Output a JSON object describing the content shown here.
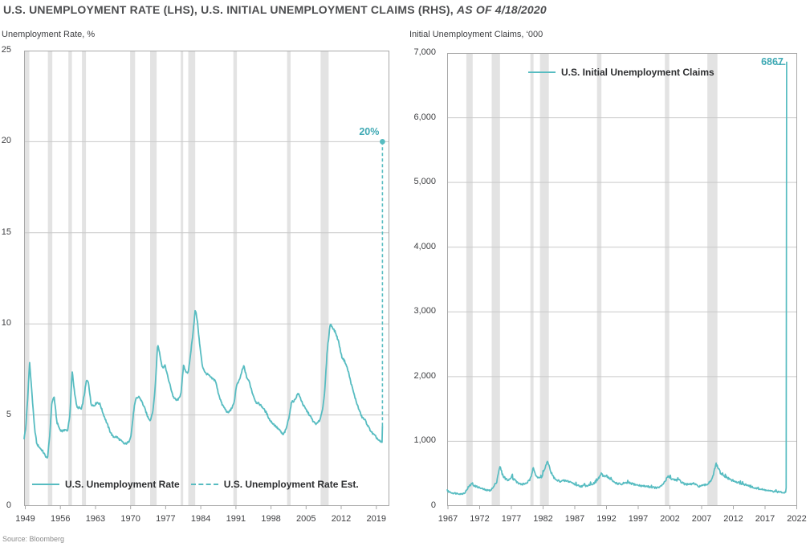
{
  "title": {
    "main": "U.S. UNEMPLOYMENT RATE (LHS), U.S. INITIAL UNEMPLOYMENT CLAIMS (RHS), ",
    "as_of": "AS OF 4/18/2020"
  },
  "source": "Source: Bloomberg",
  "colors": {
    "line": "#57bcc1",
    "annotation": "#3fa9b4",
    "recession_band": "#e3e3e3",
    "gridline": "#c9c9c9",
    "axis_border": "#a8a8a8",
    "title_text": "#4d4e50",
    "tick_text": "#3e3f42",
    "legend_text": "#2d2e30",
    "source_text": "#8a8a8a",
    "background": "#ffffff"
  },
  "chart_data": [
    {
      "type": "line",
      "title": "Unemployment Rate, %",
      "ylabel": "Unemployment Rate, %",
      "ylim": [
        0,
        25
      ],
      "yticks": [
        0,
        5,
        10,
        15,
        20,
        25
      ],
      "ytick_labels": [
        "0",
        "5",
        "10",
        "15",
        "20",
        "25"
      ],
      "xlim": [
        1948.76,
        2021.6
      ],
      "xticks": [
        1949,
        1956,
        1963,
        1970,
        1977,
        1984,
        1991,
        1998,
        2005,
        2012,
        2019
      ],
      "grid": "horizontal",
      "legend_position": "bottom-inside",
      "legend": [
        {
          "label": "U.S. Unemployment Rate",
          "style": "solid"
        },
        {
          "label": "U.S. Unemployment Rate Est.",
          "style": "dashed"
        }
      ],
      "annotation": {
        "text": "20%",
        "x": 2020.22,
        "y": 20
      },
      "recessions": [
        [
          1948.9,
          1949.8
        ],
        [
          1953.5,
          1954.4
        ],
        [
          1957.6,
          1958.3
        ],
        [
          1960.3,
          1961.1
        ],
        [
          1969.9,
          1970.9
        ],
        [
          1973.9,
          1975.2
        ],
        [
          1980.0,
          1980.5
        ],
        [
          1981.5,
          1982.9
        ],
        [
          1990.5,
          1991.2
        ],
        [
          2001.2,
          2001.9
        ],
        [
          2007.9,
          2009.5
        ]
      ],
      "series": [
        {
          "name": "U.S. Unemployment Rate",
          "style": "solid",
          "points": [
            [
              1948.76,
              3.7
            ],
            [
              1949.1,
              4.3
            ],
            [
              1949.5,
              6.0
            ],
            [
              1949.85,
              7.9
            ],
            [
              1950.3,
              6.3
            ],
            [
              1950.8,
              4.4
            ],
            [
              1951.3,
              3.4
            ],
            [
              1951.9,
              3.2
            ],
            [
              1952.5,
              3.0
            ],
            [
              1952.9,
              2.8
            ],
            [
              1953.4,
              2.6
            ],
            [
              1953.8,
              3.6
            ],
            [
              1954.3,
              5.7
            ],
            [
              1954.75,
              6.0
            ],
            [
              1955.3,
              4.6
            ],
            [
              1955.9,
              4.2
            ],
            [
              1956.4,
              4.1
            ],
            [
              1956.9,
              4.2
            ],
            [
              1957.4,
              4.1
            ],
            [
              1957.9,
              5.0
            ],
            [
              1958.35,
              7.4
            ],
            [
              1958.8,
              6.3
            ],
            [
              1959.3,
              5.4
            ],
            [
              1959.8,
              5.4
            ],
            [
              1960.2,
              5.3
            ],
            [
              1960.7,
              6.0
            ],
            [
              1961.2,
              6.9
            ],
            [
              1961.6,
              6.8
            ],
            [
              1962.1,
              5.6
            ],
            [
              1962.7,
              5.5
            ],
            [
              1963.3,
              5.7
            ],
            [
              1963.9,
              5.6
            ],
            [
              1964.5,
              5.1
            ],
            [
              1965.2,
              4.6
            ],
            [
              1965.9,
              4.1
            ],
            [
              1966.5,
              3.8
            ],
            [
              1967.2,
              3.8
            ],
            [
              1968.0,
              3.6
            ],
            [
              1968.8,
              3.4
            ],
            [
              1969.6,
              3.5
            ],
            [
              1970.1,
              3.9
            ],
            [
              1970.7,
              5.4
            ],
            [
              1971.1,
              5.9
            ],
            [
              1971.7,
              6.0
            ],
            [
              1972.3,
              5.7
            ],
            [
              1972.9,
              5.3
            ],
            [
              1973.4,
              4.9
            ],
            [
              1973.95,
              4.7
            ],
            [
              1974.5,
              5.3
            ],
            [
              1974.9,
              6.5
            ],
            [
              1975.4,
              8.9
            ],
            [
              1975.8,
              8.4
            ],
            [
              1976.3,
              7.6
            ],
            [
              1976.9,
              7.7
            ],
            [
              1977.4,
              7.1
            ],
            [
              1977.9,
              6.6
            ],
            [
              1978.5,
              6.0
            ],
            [
              1979.1,
              5.8
            ],
            [
              1979.7,
              5.9
            ],
            [
              1980.1,
              6.3
            ],
            [
              1980.55,
              7.7
            ],
            [
              1981.0,
              7.4
            ],
            [
              1981.5,
              7.3
            ],
            [
              1981.9,
              8.2
            ],
            [
              1982.4,
              9.4
            ],
            [
              1982.9,
              10.8
            ],
            [
              1983.3,
              10.2
            ],
            [
              1983.8,
              8.8
            ],
            [
              1984.3,
              7.7
            ],
            [
              1984.9,
              7.3
            ],
            [
              1985.5,
              7.2
            ],
            [
              1986.2,
              7.0
            ],
            [
              1986.9,
              6.9
            ],
            [
              1987.5,
              6.2
            ],
            [
              1988.2,
              5.6
            ],
            [
              1988.9,
              5.3
            ],
            [
              1989.4,
              5.1
            ],
            [
              1990.0,
              5.3
            ],
            [
              1990.6,
              5.6
            ],
            [
              1991.1,
              6.6
            ],
            [
              1991.7,
              6.9
            ],
            [
              1992.2,
              7.4
            ],
            [
              1992.6,
              7.7
            ],
            [
              1993.1,
              7.1
            ],
            [
              1993.7,
              6.8
            ],
            [
              1994.3,
              6.2
            ],
            [
              1995.0,
              5.7
            ],
            [
              1995.7,
              5.6
            ],
            [
              1996.4,
              5.4
            ],
            [
              1997.1,
              5.1
            ],
            [
              1997.8,
              4.7
            ],
            [
              1998.5,
              4.5
            ],
            [
              1999.2,
              4.3
            ],
            [
              1999.9,
              4.1
            ],
            [
              2000.4,
              3.9
            ],
            [
              2001.0,
              4.2
            ],
            [
              2001.6,
              4.9
            ],
            [
              2002.1,
              5.7
            ],
            [
              2002.7,
              5.8
            ],
            [
              2003.4,
              6.2
            ],
            [
              2003.9,
              5.9
            ],
            [
              2004.5,
              5.5
            ],
            [
              2005.2,
              5.2
            ],
            [
              2005.9,
              4.9
            ],
            [
              2006.5,
              4.6
            ],
            [
              2007.1,
              4.5
            ],
            [
              2007.7,
              4.7
            ],
            [
              2008.2,
              5.2
            ],
            [
              2008.7,
              6.2
            ],
            [
              2009.2,
              8.5
            ],
            [
              2009.8,
              10.0
            ],
            [
              2010.3,
              9.8
            ],
            [
              2010.9,
              9.5
            ],
            [
              2011.5,
              9.0
            ],
            [
              2012.1,
              8.2
            ],
            [
              2012.8,
              7.9
            ],
            [
              2013.4,
              7.4
            ],
            [
              2014.0,
              6.7
            ],
            [
              2014.7,
              6.0
            ],
            [
              2015.4,
              5.4
            ],
            [
              2016.1,
              4.9
            ],
            [
              2016.8,
              4.7
            ],
            [
              2017.5,
              4.3
            ],
            [
              2018.2,
              4.0
            ],
            [
              2018.9,
              3.8
            ],
            [
              2019.5,
              3.6
            ],
            [
              2019.95,
              3.5
            ],
            [
              2020.15,
              3.5
            ],
            [
              2020.22,
              4.4
            ]
          ]
        },
        {
          "name": "U.S. Unemployment Rate Est.",
          "style": "dashed",
          "endpoint_dot": true,
          "points": [
            [
              2020.22,
              4.4
            ],
            [
              2020.22,
              20.0
            ]
          ]
        }
      ]
    },
    {
      "type": "line",
      "title": "Initial Unemployment Claims, ‘000",
      "ylabel": "Initial Unemployment Claims, '000",
      "ylim": [
        0,
        7000
      ],
      "yticks": [
        0,
        1000,
        2000,
        3000,
        4000,
        5000,
        6000,
        7000
      ],
      "ytick_labels": [
        "0",
        "1,000",
        "2,000",
        "3,000",
        "4,000",
        "5,000",
        "6,000",
        "7,000"
      ],
      "xlim": [
        1966.87,
        2022.06
      ],
      "xticks": [
        1967,
        1972,
        1977,
        1982,
        1987,
        1992,
        1997,
        2002,
        2007,
        2012,
        2017,
        2022
      ],
      "grid": "horizontal",
      "legend_position": "top-inside",
      "legend": [
        {
          "label": "U.S. Initial Unemployment Claims",
          "style": "solid"
        }
      ],
      "annotation": {
        "text": "6867",
        "x": 2020.4,
        "y": 6867
      },
      "recessions": [
        [
          1969.9,
          1970.9
        ],
        [
          1973.9,
          1975.2
        ],
        [
          1980.0,
          1980.5
        ],
        [
          1981.5,
          1982.9
        ],
        [
          1990.5,
          1991.2
        ],
        [
          2001.2,
          2001.9
        ],
        [
          2007.9,
          2009.5
        ]
      ],
      "series": [
        {
          "name": "U.S. Initial Unemployment Claims",
          "style": "solid",
          "points": [
            [
              1966.87,
              235
            ],
            [
              1967.3,
              215
            ],
            [
              1967.8,
              200
            ],
            [
              1968.5,
              195
            ],
            [
              1969.2,
              185
            ],
            [
              1969.7,
              210
            ],
            [
              1970.2,
              290
            ],
            [
              1970.75,
              345
            ],
            [
              1971.2,
              310
            ],
            [
              1971.7,
              295
            ],
            [
              1972.3,
              270
            ],
            [
              1973.0,
              245
            ],
            [
              1973.6,
              240
            ],
            [
              1974.1,
              280
            ],
            [
              1974.7,
              380
            ],
            [
              1975.05,
              570
            ],
            [
              1975.25,
              600
            ],
            [
              1975.6,
              480
            ],
            [
              1976.1,
              420
            ],
            [
              1976.6,
              395
            ],
            [
              1976.95,
              440
            ],
            [
              1977.05,
              500
            ],
            [
              1977.2,
              430
            ],
            [
              1977.6,
              390
            ],
            [
              1978.1,
              350
            ],
            [
              1978.7,
              335
            ],
            [
              1979.3,
              350
            ],
            [
              1979.8,
              390
            ],
            [
              1980.15,
              450
            ],
            [
              1980.45,
              620
            ],
            [
              1980.8,
              490
            ],
            [
              1981.2,
              430
            ],
            [
              1981.7,
              440
            ],
            [
              1982.1,
              530
            ],
            [
              1982.55,
              650
            ],
            [
              1982.8,
              680
            ],
            [
              1983.1,
              560
            ],
            [
              1983.5,
              470
            ],
            [
              1984.0,
              400
            ],
            [
              1984.7,
              385
            ],
            [
              1985.5,
              390
            ],
            [
              1986.3,
              375
            ],
            [
              1987.1,
              330
            ],
            [
              1988.0,
              305
            ],
            [
              1988.8,
              315
            ],
            [
              1989.5,
              335
            ],
            [
              1990.2,
              355
            ],
            [
              1990.7,
              420
            ],
            [
              1991.15,
              495
            ],
            [
              1991.5,
              460
            ],
            [
              1991.95,
              475
            ],
            [
              1992.4,
              430
            ],
            [
              1993.0,
              380
            ],
            [
              1993.8,
              345
            ],
            [
              1994.5,
              335
            ],
            [
              1995.3,
              360
            ],
            [
              1996.0,
              345
            ],
            [
              1996.8,
              325
            ],
            [
              1997.6,
              310
            ],
            [
              1998.4,
              305
            ],
            [
              1999.2,
              290
            ],
            [
              2000.0,
              280
            ],
            [
              2000.7,
              310
            ],
            [
              2001.3,
              390
            ],
            [
              2001.75,
              470
            ],
            [
              2002.2,
              420
            ],
            [
              2002.9,
              405
            ],
            [
              2003.5,
              395
            ],
            [
              2004.2,
              345
            ],
            [
              2005.0,
              330
            ],
            [
              2005.75,
              350
            ],
            [
              2006.4,
              305
            ],
            [
              2007.2,
              315
            ],
            [
              2007.9,
              335
            ],
            [
              2008.5,
              400
            ],
            [
              2008.9,
              500
            ],
            [
              2009.25,
              650
            ],
            [
              2009.6,
              590
            ],
            [
              2010.1,
              480
            ],
            [
              2010.8,
              450
            ],
            [
              2011.5,
              410
            ],
            [
              2012.3,
              375
            ],
            [
              2013.1,
              350
            ],
            [
              2013.9,
              330
            ],
            [
              2014.7,
              300
            ],
            [
              2015.5,
              275
            ],
            [
              2016.3,
              260
            ],
            [
              2017.1,
              245
            ],
            [
              2017.9,
              230
            ],
            [
              2018.7,
              220
            ],
            [
              2019.5,
              215
            ],
            [
              2020.0,
              210
            ],
            [
              2020.25,
              215
            ],
            [
              2020.33,
              282
            ],
            [
              2020.4,
              6867
            ]
          ]
        }
      ]
    }
  ]
}
